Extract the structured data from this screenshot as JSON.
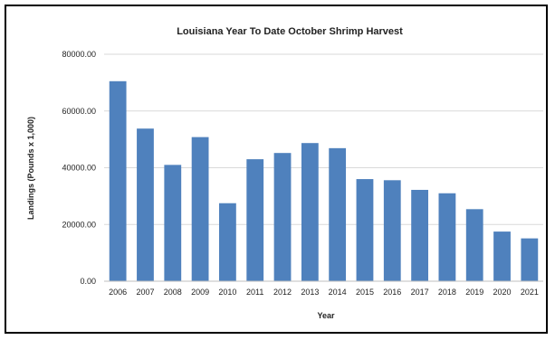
{
  "chart_data": {
    "type": "bar",
    "title": "Louisiana Year To Date October Shrimp Harvest",
    "xlabel": "Year",
    "ylabel": "Landings (Pounds x 1,000)",
    "ylim": [
      0,
      80000
    ],
    "yticks": [
      "0.00",
      "20000.00",
      "40000.00",
      "60000.00",
      "80000.00"
    ],
    "grid": true,
    "legend": "none",
    "bar_color": "#4F81BD",
    "grid_color": "#d9d9d9",
    "categories": [
      "2006",
      "2007",
      "2008",
      "2009",
      "2010",
      "2011",
      "2012",
      "2013",
      "2014",
      "2015",
      "2016",
      "2017",
      "2018",
      "2019",
      "2020",
      "2021"
    ],
    "values": [
      70500,
      53800,
      41000,
      50800,
      27500,
      43000,
      45200,
      48700,
      46900,
      36000,
      35600,
      32200,
      31000,
      25400,
      17500,
      15100
    ]
  }
}
